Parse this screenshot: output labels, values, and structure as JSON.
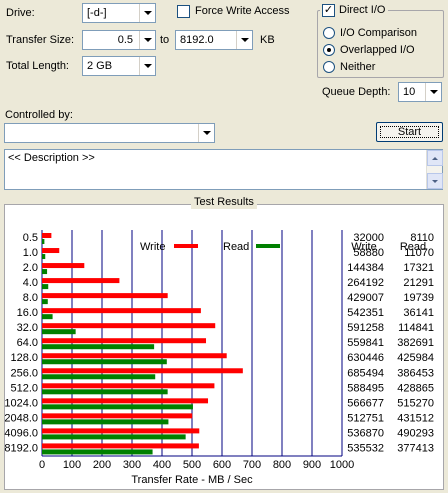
{
  "form": {
    "drive_label": "Drive:",
    "drive_value": "[-d-]",
    "transfer_size_label": "Transfer Size:",
    "transfer_from": "0.5",
    "to_label": "to",
    "transfer_to": "8192.0",
    "unit_label": "KB",
    "total_length_label": "Total Length:",
    "total_length_value": "2 GB",
    "force_write_label": "Force Write Access",
    "force_write_checked": false,
    "direct_io_label": "Direct I/O",
    "direct_io_checked": true,
    "io_comparison_label": "I/O Comparison",
    "overlapped_io_label": "Overlapped I/O",
    "neither_label": "Neither",
    "selected_mode": "overlapped",
    "queue_depth_label": "Queue Depth:",
    "queue_depth_value": "10",
    "controlled_by_label": "Controlled by:",
    "controlled_by_value": "",
    "start_label": "Start",
    "description_text": "<< Description >>"
  },
  "results": {
    "group_title": "Test Results",
    "legend_write": "Write",
    "legend_read": "Read",
    "col_write": "Write",
    "col_read": "Read"
  },
  "colors": {
    "write": "#ff0000",
    "read": "#008000",
    "grid": "#000080"
  },
  "chart_data": {
    "type": "bar",
    "orientation": "horizontal",
    "xlabel": "Transfer Rate - MB / Sec",
    "xlim": [
      0,
      1000
    ],
    "xticks": [
      0,
      100,
      200,
      300,
      400,
      500,
      600,
      700,
      800,
      900,
      1000
    ],
    "grid": true,
    "legend": "top",
    "categories": [
      "0.5",
      "1.0",
      "2.0",
      "4.0",
      "8.0",
      "16.0",
      "32.0",
      "64.0",
      "128.0",
      "256.0",
      "512.0",
      "1024.0",
      "2048.0",
      "4096.0",
      "8192.0"
    ],
    "series": [
      {
        "name": "Write",
        "values": [
          32000,
          58880,
          144384,
          264192,
          429007,
          542351,
          591258,
          559841,
          630446,
          685494,
          588495,
          566677,
          512751,
          536870,
          535532
        ]
      },
      {
        "name": "Read",
        "values": [
          8110,
          11070,
          17321,
          21291,
          19739,
          36141,
          114841,
          382691,
          425984,
          386453,
          428865,
          515270,
          431512,
          490293,
          377413
        ]
      }
    ]
  }
}
